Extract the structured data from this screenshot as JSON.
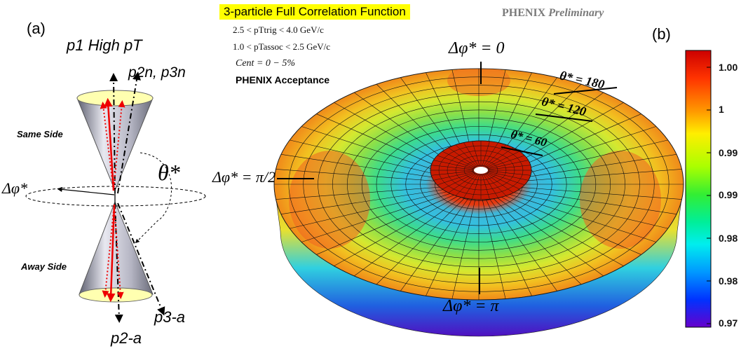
{
  "panel_a": {
    "label": "(a)",
    "high_pt": "p1 High pT",
    "p2n_p3n": "p2n, p3n",
    "same_side": "Same Side",
    "away_side": "Away Side",
    "delta_phi": "Δφ*",
    "theta": "θ*",
    "p2a": "p2-a",
    "p3a": "p3-a"
  },
  "panel_b": {
    "label": "(b)",
    "title": "3-particle Full Correlation Function",
    "prelim_word1": "PHENIX",
    "prelim_word2": "Preliminary",
    "cut_trig": "2.5 < pTtrig < 4.0 GeV/c",
    "cut_assoc": "1.0 < pTassoc < 2.5 GeV/c",
    "cent": "Cent = 0 − 5%",
    "acceptance": "PHENIX Acceptance",
    "theta180": "θ* = 180",
    "theta120": "θ* = 120",
    "theta60": "θ* = 60",
    "phi0": "Δφ* = 0",
    "phi_half": "Δφ* = π/2",
    "phi_pi": "Δφ* = π",
    "colorbar_ticks": [
      "1.00",
      "1",
      "0.99",
      "0.99",
      "0.98",
      "0.98",
      "0.97"
    ]
  }
}
